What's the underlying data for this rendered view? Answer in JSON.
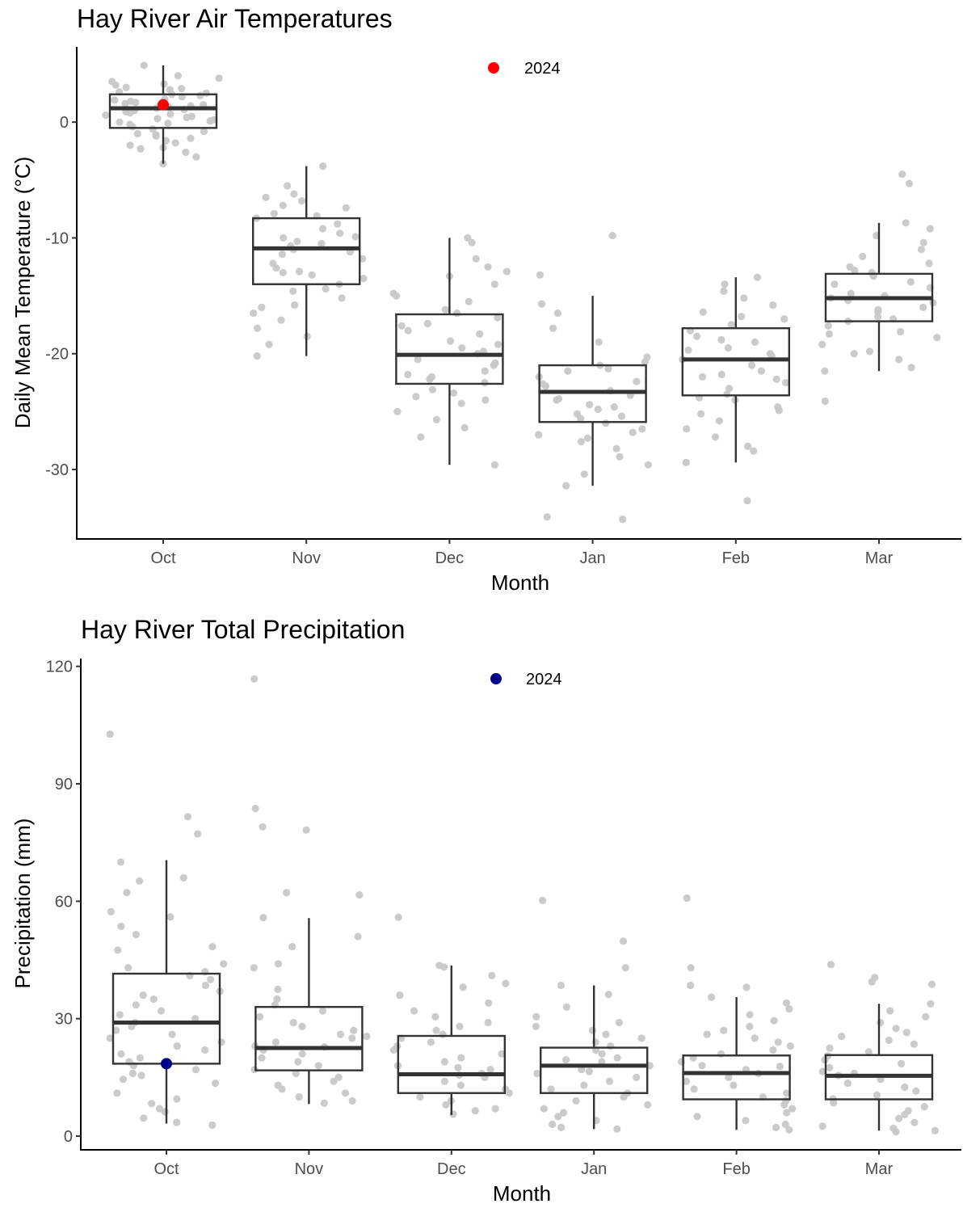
{
  "chart_data": [
    {
      "type": "boxplot",
      "title": "Hay River Air Temperatures",
      "xlabel": "Month",
      "ylabel": "Daily Mean Temperature (°C)",
      "categories": [
        "Oct",
        "Nov",
        "Dec",
        "Jan",
        "Feb",
        "Mar"
      ],
      "ylim": [
        -36,
        6.5
      ],
      "yticks": [
        0,
        -10,
        -20,
        -30
      ],
      "ytick_labels": [
        "0",
        "-10",
        "-20",
        "-30"
      ],
      "highlight_color": "#ff0000",
      "point_color": "#c8c8c8",
      "box_color": "#333333",
      "legend": {
        "label": "2024",
        "placement": "top-center"
      },
      "grid": false,
      "boxes": [
        {
          "category": "Oct",
          "whisker_low": -3.6,
          "q1": -0.5,
          "median": 1.2,
          "q3": 2.4,
          "whisker_high": 4.9
        },
        {
          "category": "Nov",
          "whisker_low": -20.2,
          "q1": -14.0,
          "median": -10.9,
          "q3": -8.3,
          "whisker_high": -3.8
        },
        {
          "category": "Dec",
          "whisker_low": -29.6,
          "q1": -22.6,
          "median": -20.1,
          "q3": -16.6,
          "whisker_high": -10.0
        },
        {
          "category": "Jan",
          "whisker_low": -31.4,
          "q1": -25.9,
          "median": -23.3,
          "q3": -21.0,
          "whisker_high": -15.0
        },
        {
          "category": "Feb",
          "whisker_low": -29.4,
          "q1": -23.6,
          "median": -20.5,
          "q3": -17.8,
          "whisker_high": -13.4
        },
        {
          "category": "Mar",
          "whisker_low": -21.5,
          "q1": -17.2,
          "median": -15.2,
          "q3": -13.1,
          "whisker_high": -8.7
        }
      ],
      "highlight": [
        {
          "category": "Oct",
          "value": 1.5
        }
      ],
      "points": {
        "Oct": [
          4.0,
          3.8,
          3.5,
          3.2,
          3.0,
          2.8,
          2.6,
          2.5,
          2.3,
          2.2,
          2.0,
          1.9,
          1.8,
          1.6,
          1.5,
          1.4,
          1.3,
          1.1,
          1.0,
          0.9,
          0.8,
          0.7,
          0.6,
          0.5,
          0.4,
          0.2,
          0.1,
          0.0,
          -0.2,
          -0.4,
          -0.6,
          -0.8,
          -1.0,
          -1.2,
          -1.4,
          -1.6,
          -1.8,
          -2.0,
          -2.3,
          -2.6,
          -3.0,
          -3.6,
          4.9,
          3.3,
          2.9,
          1.7,
          0.3,
          -0.1,
          -1.1,
          -2.2,
          2.4,
          1.2
        ],
        "Nov": [
          -3.8,
          -5.5,
          -6.2,
          -6.8,
          -7.4,
          -7.9,
          -8.3,
          -8.8,
          -9.2,
          -9.6,
          -10.0,
          -10.3,
          -10.7,
          -11.0,
          -11.4,
          -11.8,
          -12.2,
          -12.6,
          -13.0,
          -13.5,
          -14.0,
          -14.6,
          -15.2,
          -15.8,
          -16.5,
          -17.1,
          -17.8,
          -18.5,
          -19.2,
          -20.2,
          -6.5,
          -8.1,
          -9.9,
          -11.2,
          -12.9,
          -14.4,
          -7.2,
          -10.5,
          -13.2,
          -16.0
        ],
        "Dec": [
          -10.0,
          -10.4,
          -11.8,
          -12.5,
          -13.3,
          -14.0,
          -14.8,
          -15.5,
          -16.2,
          -16.9,
          -17.6,
          -18.3,
          -18.9,
          -19.5,
          -20.0,
          -20.5,
          -21.0,
          -21.5,
          -22.0,
          -22.5,
          -23.1,
          -23.7,
          -24.3,
          -25.0,
          -25.7,
          -26.4,
          -27.2,
          -29.6,
          -18.0,
          -19.2,
          -20.8,
          -22.2,
          -16.5,
          -17.4,
          -21.8,
          -24.0,
          -12.9,
          -15.0,
          -19.8,
          -23.4
        ],
        "Jan": [
          -9.8,
          -13.2,
          -15.7,
          -16.5,
          -17.8,
          -19.0,
          -20.3,
          -21.0,
          -21.5,
          -22.0,
          -22.4,
          -22.8,
          -23.2,
          -23.6,
          -24.0,
          -24.4,
          -24.8,
          -25.2,
          -25.6,
          -26.0,
          -26.5,
          -27.0,
          -27.6,
          -28.2,
          -28.9,
          -29.6,
          -30.4,
          -31.4,
          -34.1,
          -34.3,
          -21.3,
          -22.6,
          -23.9,
          -25.4,
          -26.8,
          -20.7,
          -24.6,
          -27.3
        ],
        "Feb": [
          -13.4,
          -14.0,
          -14.6,
          -15.2,
          -15.8,
          -16.4,
          -17.0,
          -17.5,
          -18.0,
          -18.5,
          -19.0,
          -19.5,
          -20.0,
          -20.5,
          -21.0,
          -21.5,
          -22.0,
          -22.5,
          -23.0,
          -23.5,
          -24.0,
          -24.6,
          -25.2,
          -25.8,
          -26.5,
          -27.2,
          -28.0,
          -28.4,
          -29.4,
          -32.7,
          -18.8,
          -20.2,
          -22.2,
          -23.8,
          -16.8,
          -19.7,
          -21.8,
          -24.9
        ],
        "Mar": [
          -4.5,
          -5.3,
          -8.7,
          -9.2,
          -9.8,
          -10.4,
          -11.0,
          -11.6,
          -12.2,
          -12.8,
          -13.3,
          -13.8,
          -14.3,
          -14.8,
          -15.2,
          -15.6,
          -16.0,
          -16.4,
          -16.8,
          -17.2,
          -17.6,
          -18.1,
          -18.6,
          -19.2,
          -19.8,
          -20.5,
          -21.2,
          -21.5,
          -24.1,
          -13.0,
          -14.0,
          -15.0,
          -16.2,
          -17.0,
          -12.5,
          -15.4,
          -18.3,
          -20.0
        ]
      }
    },
    {
      "type": "boxplot",
      "title": "Hay River Total Precipitation",
      "xlabel": "Month",
      "ylabel": "Precipitation (mm)",
      "categories": [
        "Oct",
        "Nov",
        "Dec",
        "Jan",
        "Feb",
        "Mar"
      ],
      "ylim": [
        -3.5,
        122
      ],
      "yticks": [
        0,
        30,
        60,
        90,
        120
      ],
      "ytick_labels": [
        "0",
        "30",
        "60",
        "90",
        "120"
      ],
      "highlight_color": "#00008b",
      "point_color": "#c8c8c8",
      "box_color": "#333333",
      "legend": {
        "label": "2024",
        "placement": "top-center"
      },
      "grid": false,
      "boxes": [
        {
          "category": "Oct",
          "whisker_low": 3.2,
          "q1": 18.5,
          "median": 29.0,
          "q3": 41.5,
          "whisker_high": 70.5
        },
        {
          "category": "Nov",
          "whisker_low": 8.2,
          "q1": 16.8,
          "median": 22.5,
          "q3": 33.0,
          "whisker_high": 55.7
        },
        {
          "category": "Dec",
          "whisker_low": 5.4,
          "q1": 11.0,
          "median": 15.8,
          "q3": 25.6,
          "whisker_high": 43.6
        },
        {
          "category": "Jan",
          "whisker_low": 1.8,
          "q1": 11.0,
          "median": 18.0,
          "q3": 22.6,
          "whisker_high": 38.5
        },
        {
          "category": "Feb",
          "whisker_low": 1.6,
          "q1": 9.4,
          "median": 16.1,
          "q3": 20.6,
          "whisker_high": 35.5
        },
        {
          "category": "Mar",
          "whisker_low": 1.4,
          "q1": 9.4,
          "median": 15.4,
          "q3": 20.7,
          "whisker_high": 33.8
        }
      ],
      "highlight": [
        {
          "category": "Oct",
          "value": 18.5
        }
      ],
      "points": {
        "Oct": [
          102.7,
          81.6,
          77.2,
          70.0,
          66.0,
          65.2,
          62.2,
          57.3,
          56.0,
          53.6,
          51.5,
          48.4,
          47.5,
          44.0,
          43.0,
          42.0,
          41.0,
          40.0,
          38.5,
          37.0,
          36.0,
          35.0,
          33.5,
          32.0,
          31.0,
          30.0,
          29.0,
          28.0,
          27.0,
          26.0,
          25.0,
          24.0,
          23.0,
          22.0,
          21.0,
          20.0,
          19.0,
          18.0,
          17.0,
          16.0,
          15.5,
          14.5,
          13.5,
          11.0,
          9.5,
          8.3,
          7.0,
          6.2,
          4.6,
          3.5,
          2.8
        ],
        "Nov": [
          116.8,
          83.7,
          79.0,
          78.2,
          62.2,
          61.6,
          55.8,
          51.0,
          48.4,
          44.0,
          43.0,
          37.5,
          35.0,
          33.5,
          32.0,
          30.5,
          29.0,
          28.0,
          27.0,
          26.0,
          25.0,
          24.0,
          23.0,
          22.0,
          21.0,
          20.0,
          19.0,
          18.0,
          17.0,
          16.0,
          15.0,
          14.0,
          13.0,
          12.0,
          11.0,
          10.0,
          9.0,
          8.4,
          25.5,
          22.8
        ],
        "Dec": [
          55.9,
          43.6,
          43.2,
          41.0,
          39.0,
          38.0,
          36.0,
          34.0,
          32.0,
          30.5,
          29.0,
          28.0,
          27.0,
          26.0,
          25.0,
          24.0,
          23.0,
          22.0,
          21.0,
          20.0,
          19.0,
          18.0,
          17.0,
          16.0,
          15.0,
          14.0,
          13.0,
          12.0,
          11.0,
          10.0,
          9.0,
          8.0,
          7.0,
          6.5,
          5.6,
          17.5,
          15.6
        ],
        "Jan": [
          60.2,
          49.8,
          43.0,
          38.5,
          36.2,
          33.0,
          30.5,
          29.0,
          28.0,
          27.0,
          26.0,
          25.0,
          24.0,
          23.0,
          22.0,
          21.0,
          20.0,
          19.0,
          18.0,
          17.0,
          16.0,
          15.0,
          14.0,
          13.0,
          12.0,
          11.0,
          10.0,
          9.0,
          8.0,
          7.0,
          6.0,
          5.0,
          4.0,
          3.0,
          2.2,
          1.8,
          19.5,
          16.5
        ],
        "Feb": [
          60.8,
          43.0,
          38.5,
          38.0,
          35.5,
          34.0,
          32.5,
          31.0,
          29.5,
          28.0,
          27.0,
          26.0,
          25.0,
          24.0,
          23.0,
          22.0,
          21.0,
          20.0,
          19.0,
          18.0,
          17.0,
          16.0,
          15.0,
          14.0,
          13.0,
          12.0,
          11.0,
          10.0,
          9.0,
          8.0,
          7.0,
          6.0,
          5.0,
          4.0,
          3.0,
          2.2,
          1.6,
          17.8
        ],
        "Mar": [
          43.8,
          40.5,
          39.4,
          38.8,
          33.8,
          32.0,
          30.5,
          29.0,
          27.5,
          26.5,
          25.5,
          24.5,
          23.5,
          22.5,
          21.5,
          20.5,
          19.5,
          18.5,
          17.5,
          16.5,
          15.5,
          14.5,
          13.5,
          12.5,
          11.5,
          10.5,
          9.5,
          8.5,
          7.5,
          6.5,
          5.5,
          4.5,
          3.5,
          2.5,
          2.0,
          1.4,
          1.1,
          16.0
        ]
      }
    }
  ]
}
